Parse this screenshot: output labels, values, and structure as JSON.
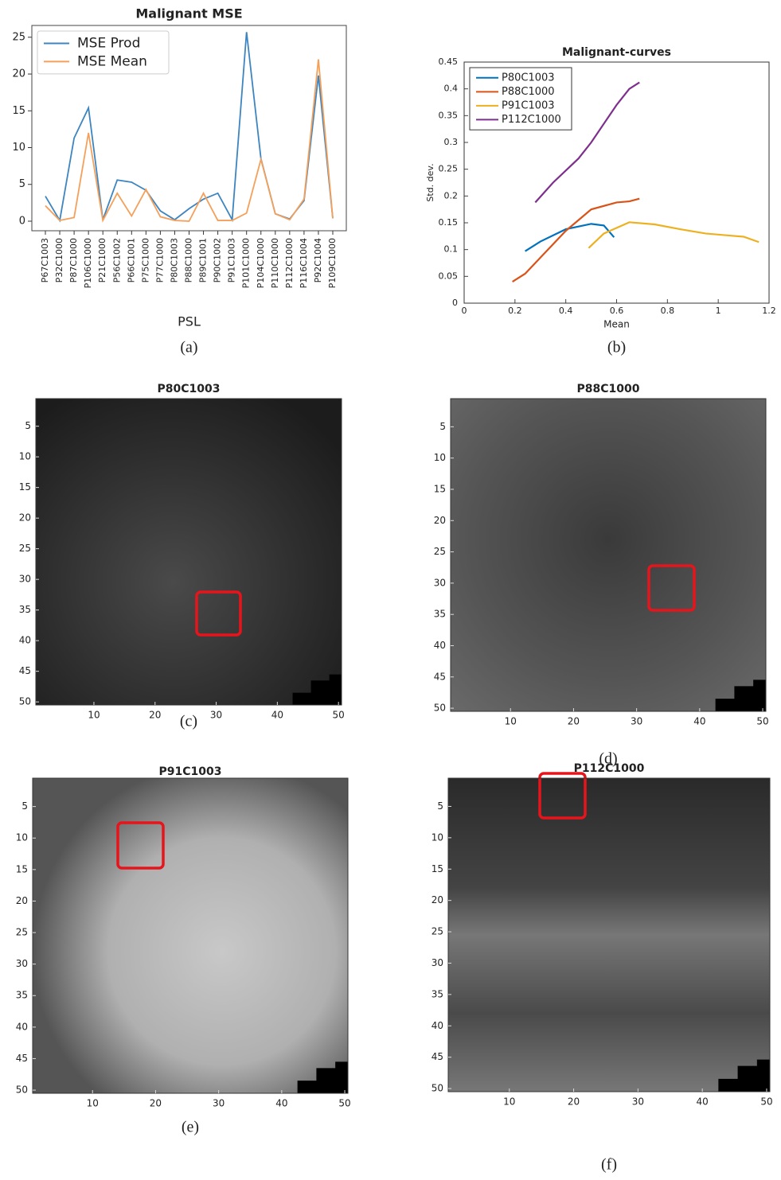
{
  "chart_data": [
    {
      "type": "line",
      "title": "Malignant MSE",
      "xlabel": "PSL",
      "caption": "(a)",
      "categories": [
        "P67C1003",
        "P32C1000",
        "P87C1000",
        "P106C1000",
        "P21C1000",
        "P56C1002",
        "P66C1001",
        "P75C1000",
        "P77C1000",
        "P80C1003",
        "P88C1000",
        "P89C1001",
        "P90C1002",
        "P91C1003",
        "P101C1000",
        "P104C1000",
        "P110C1000",
        "P112C1000",
        "P116C1004",
        "P92C1004",
        "P109C1000"
      ],
      "series": [
        {
          "name": "MSE Prod",
          "color": "#3d85c0",
          "values": [
            3.4,
            0.1,
            11.3,
            15.4,
            0.2,
            5.6,
            5.3,
            4.2,
            1.4,
            0.2,
            1.7,
            3.0,
            3.8,
            0.2,
            25.7,
            8.5,
            1.0,
            0.3,
            2.8,
            19.8,
            0.4
          ]
        },
        {
          "name": "MSE Mean",
          "color": "#f5a05a",
          "values": [
            2.1,
            0.1,
            0.5,
            12.0,
            0.1,
            3.8,
            0.7,
            4.3,
            0.6,
            0.1,
            0.0,
            3.8,
            0.1,
            0.1,
            1.1,
            8.4,
            1.0,
            0.2,
            3.0,
            22.0,
            0.4
          ]
        }
      ],
      "ylim": [
        -1.3,
        26.6
      ],
      "yticks": [
        0,
        5,
        10,
        15,
        20,
        25
      ],
      "legend": "upper left"
    },
    {
      "type": "line",
      "title": "Malignant-curves",
      "xlabel": "Mean",
      "ylabel": "Std. dev.",
      "caption": "(b)",
      "series": [
        {
          "name": "P80C1003",
          "color": "#0072bd",
          "x": [
            0.24,
            0.3,
            0.4,
            0.5,
            0.55,
            0.59
          ],
          "values": [
            0.097,
            0.115,
            0.138,
            0.148,
            0.145,
            0.123
          ]
        },
        {
          "name": "P88C1000",
          "color": "#d95319",
          "x": [
            0.19,
            0.24,
            0.3,
            0.4,
            0.5,
            0.6,
            0.65,
            0.69
          ],
          "values": [
            0.04,
            0.055,
            0.085,
            0.135,
            0.175,
            0.188,
            0.19,
            0.195
          ]
        },
        {
          "name": "P91C1003",
          "color": "#edb120",
          "x": [
            0.49,
            0.55,
            0.65,
            0.75,
            0.85,
            0.95,
            1.05,
            1.1,
            1.16
          ],
          "values": [
            0.103,
            0.13,
            0.151,
            0.147,
            0.138,
            0.13,
            0.126,
            0.124,
            0.114
          ]
        },
        {
          "name": "P112C1000",
          "color": "#7e2f8e",
          "x": [
            0.28,
            0.35,
            0.45,
            0.5,
            0.6,
            0.65,
            0.69
          ],
          "values": [
            0.188,
            0.225,
            0.27,
            0.3,
            0.37,
            0.4,
            0.412
          ]
        }
      ],
      "xlim": [
        0,
        1.2
      ],
      "xticks": [
        0,
        0.2,
        0.4,
        0.6,
        0.8,
        1,
        1.2
      ],
      "ylim": [
        0,
        0.45
      ],
      "yticks": [
        0,
        0.05,
        0.1,
        0.15,
        0.2,
        0.25,
        0.3,
        0.35,
        0.4,
        0.45
      ],
      "legend": "upper left"
    },
    {
      "type": "image",
      "title": "P80C1003",
      "caption": "(c)",
      "colormap": "gray",
      "y_reversed": true,
      "xlim": [
        0.5,
        50.5
      ],
      "xticks": [
        10,
        20,
        30,
        40,
        50
      ],
      "ylim": [
        0.5,
        50.5
      ],
      "yticks": [
        5,
        10,
        15,
        20,
        25,
        30,
        35,
        40,
        45,
        50
      ]
    },
    {
      "type": "image",
      "title": "P88C1000",
      "caption": "(d)",
      "colormap": "gray",
      "y_reversed": true,
      "xlim": [
        0.5,
        50.5
      ],
      "xticks": [
        10,
        20,
        30,
        40,
        50
      ],
      "ylim": [
        0.5,
        50.5
      ],
      "yticks": [
        5,
        10,
        15,
        20,
        25,
        30,
        35,
        40,
        45,
        50
      ]
    },
    {
      "type": "image",
      "title": "P91C1003",
      "caption": "(e)",
      "colormap": "gray",
      "y_reversed": true,
      "xlim": [
        0.5,
        50.5
      ],
      "xticks": [
        10,
        20,
        30,
        40,
        50
      ],
      "ylim": [
        0.5,
        50.5
      ],
      "yticks": [
        5,
        10,
        15,
        20,
        25,
        30,
        35,
        40,
        45,
        50
      ]
    },
    {
      "type": "image",
      "title": "P112C1000",
      "caption": "(f)",
      "colormap": "gray",
      "y_reversed": true,
      "xlim": [
        0.5,
        50.5
      ],
      "xticks": [
        10,
        20,
        30,
        40,
        50
      ],
      "ylim": [
        0.5,
        50.5
      ],
      "yticks": [
        5,
        10,
        15,
        20,
        25,
        30,
        35,
        40,
        45,
        50
      ]
    }
  ]
}
